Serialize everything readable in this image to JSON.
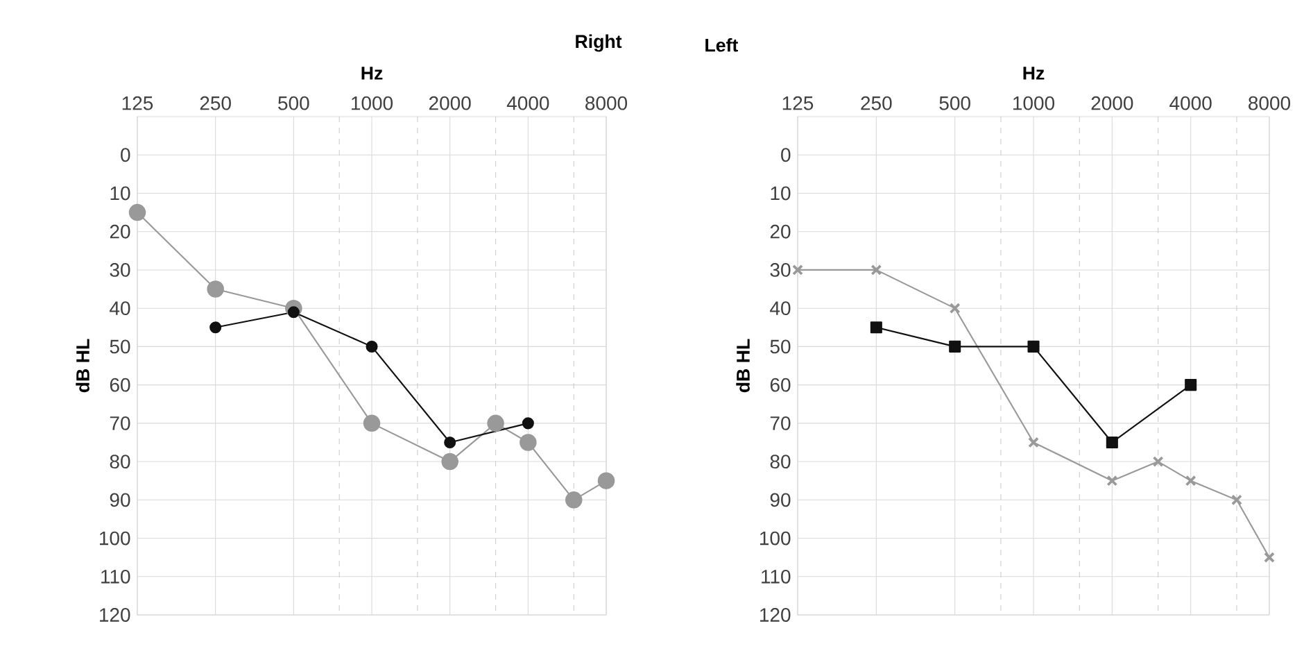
{
  "chart_data": [
    {
      "type": "line",
      "title": "Right",
      "xlabel": "Hz",
      "ylabel": "dB HL",
      "log": "x",
      "grid": true,
      "xlim": [
        125,
        8000
      ],
      "xticks": [
        125,
        250,
        500,
        1000,
        2000,
        4000,
        8000,
        {
          "value": 750,
          "label": null
        },
        {
          "value": 1500,
          "label": null
        },
        {
          "value": 3000,
          "label": null
        },
        {
          "value": 6000,
          "label": null
        }
      ],
      "ylim": [
        120,
        -10
      ],
      "yticks": [
        0,
        10,
        20,
        30,
        40,
        50,
        60,
        70,
        80,
        90,
        100,
        110,
        120
      ],
      "series": [
        {
          "color": "#999999",
          "marker": "circle",
          "x": [
            125,
            250,
            500,
            1000,
            2000,
            3000,
            4000,
            6000,
            8000
          ],
          "values": [
            15,
            35,
            40,
            70,
            80,
            70,
            75,
            90,
            85
          ]
        },
        {
          "color": "#111111",
          "marker": "circle",
          "x": [
            250,
            500,
            1000,
            2000,
            4000
          ],
          "values": [
            45,
            41,
            50,
            75,
            70
          ]
        }
      ]
    },
    {
      "type": "line",
      "title": "Left",
      "xlabel": "Hz",
      "ylabel": "dB HL",
      "log": "x",
      "grid": true,
      "xlim": [
        125,
        8000
      ],
      "xticks": [
        125,
        250,
        500,
        1000,
        2000,
        4000,
        8000,
        {
          "value": 750,
          "label": null
        },
        {
          "value": 1500,
          "label": null
        },
        {
          "value": 3000,
          "label": null
        },
        {
          "value": 6000,
          "label": null
        }
      ],
      "ylim": [
        120,
        -10
      ],
      "yticks": [
        0,
        10,
        20,
        30,
        40,
        50,
        60,
        70,
        80,
        90,
        100,
        110,
        120
      ],
      "series": [
        {
          "color": "#999999",
          "marker": "cross",
          "x": [
            125,
            250,
            500,
            1000,
            2000,
            3000,
            4000,
            6000,
            8000
          ],
          "values": [
            30,
            30,
            40,
            75,
            85,
            80,
            85,
            90,
            105
          ]
        },
        {
          "color": "#111111",
          "marker": "square",
          "x": [
            250,
            500,
            1000,
            2000,
            4000
          ],
          "values": [
            45,
            50,
            50,
            75,
            60
          ]
        }
      ]
    }
  ]
}
